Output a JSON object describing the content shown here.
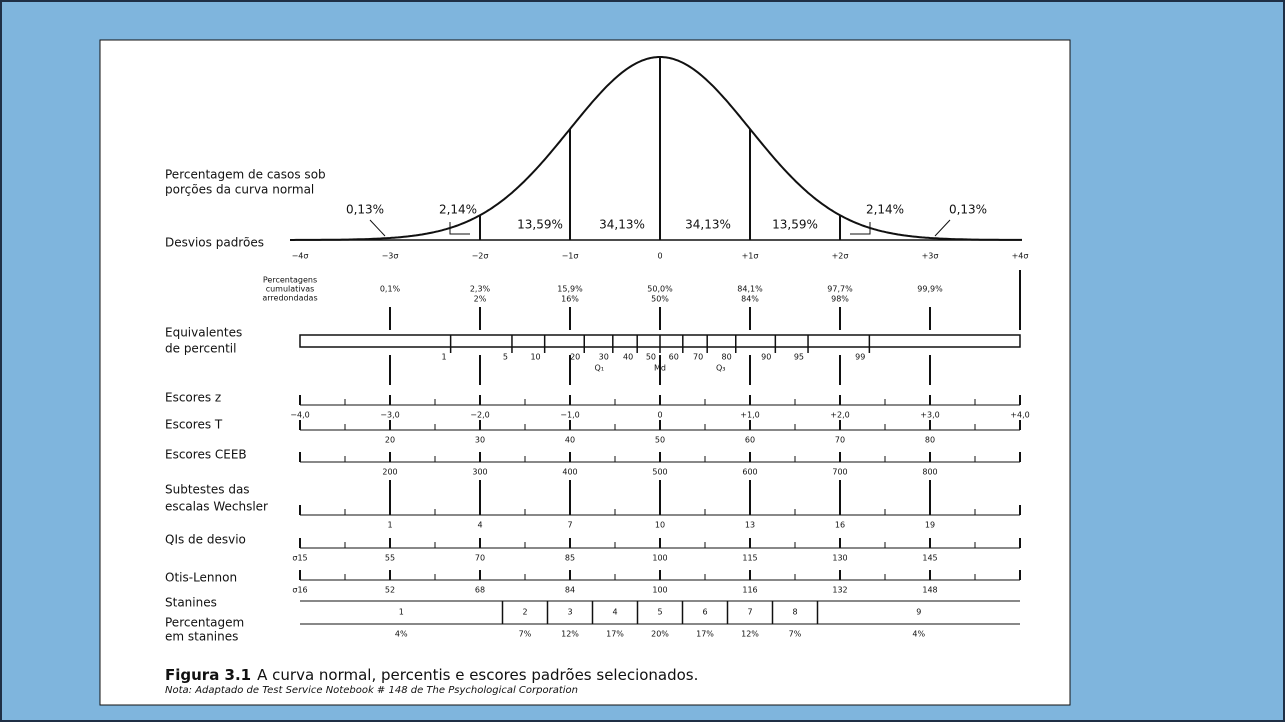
{
  "curve": {
    "label_lines": [
      "Percentagem de casos sob",
      "porções da curva normal"
    ],
    "percentages": [
      "0,13%",
      "2,14%",
      "13,59%",
      "34,13%",
      "34,13%",
      "13,59%",
      "2,14%",
      "0,13%"
    ]
  },
  "sigma": {
    "label": "Desvios padrões",
    "ticks": [
      "−4σ",
      "−3σ",
      "−2σ",
      "−1σ",
      "0",
      "+1σ",
      "+2σ",
      "+3σ",
      "+4σ"
    ]
  },
  "cumulative": {
    "label_lines": [
      "Percentagens",
      "cumulativas",
      "arredondadas"
    ],
    "values": [
      "0,1%",
      "2,3%",
      "15,9%",
      "50,0%",
      "84,1%",
      "97,7%",
      "99,9%"
    ],
    "rounded": [
      "2%",
      "16%",
      "50%",
      "84%",
      "98%"
    ]
  },
  "percentile": {
    "label_lines": [
      "Equivalentes",
      "de percentil"
    ],
    "values": [
      1,
      5,
      10,
      20,
      30,
      40,
      50,
      60,
      70,
      80,
      90,
      95,
      99
    ],
    "quartiles": [
      "Q₁",
      "Md",
      "Q₃"
    ]
  },
  "scales": [
    {
      "label_lines": [
        "Escores z"
      ],
      "ticks": [
        "−4,0",
        "−3,0",
        "−2,0",
        "−1,0",
        "0",
        "+1,0",
        "+2,0",
        "+3,0",
        "+4,0"
      ]
    },
    {
      "label_lines": [
        "Escores T"
      ],
      "ticks": [
        "20",
        "30",
        "40",
        "50",
        "60",
        "70",
        "80"
      ]
    },
    {
      "label_lines": [
        "Escores CEEB"
      ],
      "ticks": [
        "200",
        "300",
        "400",
        "500",
        "600",
        "700",
        "800"
      ]
    },
    {
      "label_lines": [
        "Subtestes das",
        "escalas Wechsler"
      ],
      "ticks": [
        "1",
        "4",
        "7",
        "10",
        "13",
        "16",
        "19"
      ]
    },
    {
      "label_lines": [
        "QIs de desvio"
      ],
      "unit": "σ15",
      "ticks": [
        "55",
        "70",
        "85",
        "100",
        "115",
        "130",
        "145"
      ]
    },
    {
      "label_lines": [
        "Otis-Lennon"
      ],
      "unit": "σ16",
      "ticks": [
        "52",
        "68",
        "84",
        "100",
        "116",
        "132",
        "148"
      ]
    }
  ],
  "stanines": {
    "label": "Stanines",
    "values": [
      "1",
      "2",
      "3",
      "4",
      "5",
      "6",
      "7",
      "8",
      "9"
    ],
    "percent_label_lines": [
      "Percentagem",
      "em stanines"
    ],
    "percentages": [
      "4%",
      "7%",
      "12%",
      "17%",
      "20%",
      "17%",
      "12%",
      "7%",
      "4%"
    ]
  },
  "caption": {
    "figure": "Figura 3.1",
    "text": "A curva normal, percentis e escores padrões selecionados.",
    "note": "Nota: Adaptado de Test Service Notebook # 148 de The Psychological Corporation"
  }
}
